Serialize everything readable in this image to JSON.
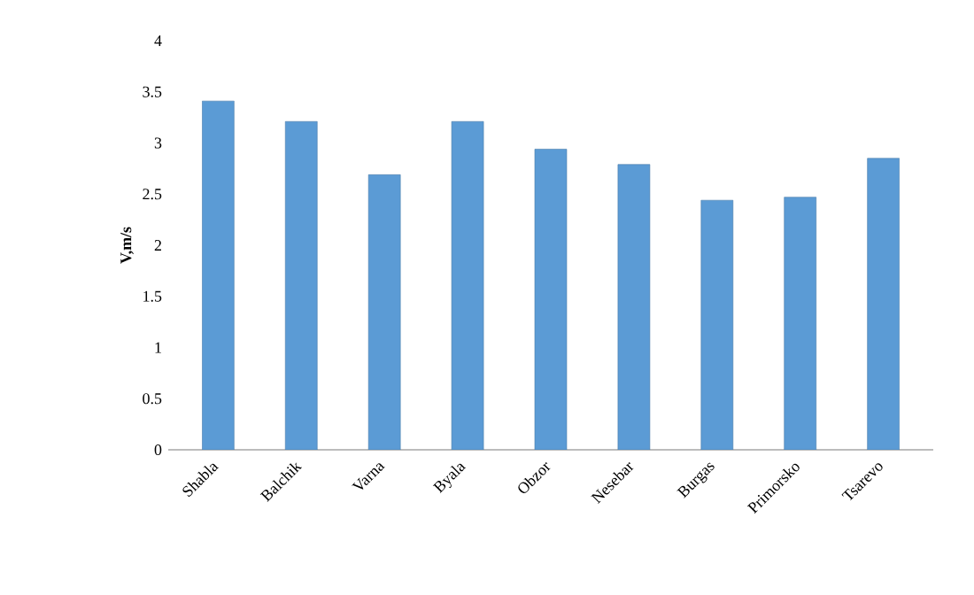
{
  "chart_data": {
    "type": "bar",
    "ylabel": "V,m/s",
    "categories": [
      "Shabla",
      "Balchik",
      "Varna",
      "Byala",
      "Obzor",
      "Nesebar",
      "Burgas",
      "Primorsko",
      "Tsarevo"
    ],
    "values": [
      3.41,
      3.21,
      2.69,
      3.21,
      2.94,
      2.79,
      2.44,
      2.47,
      2.85
    ],
    "color": "#5b9bd5",
    "ylim": [
      0,
      4
    ],
    "yticks": [
      0,
      0.5,
      1,
      1.5,
      2,
      2.5,
      3,
      3.5,
      4
    ],
    "grid": false
  }
}
